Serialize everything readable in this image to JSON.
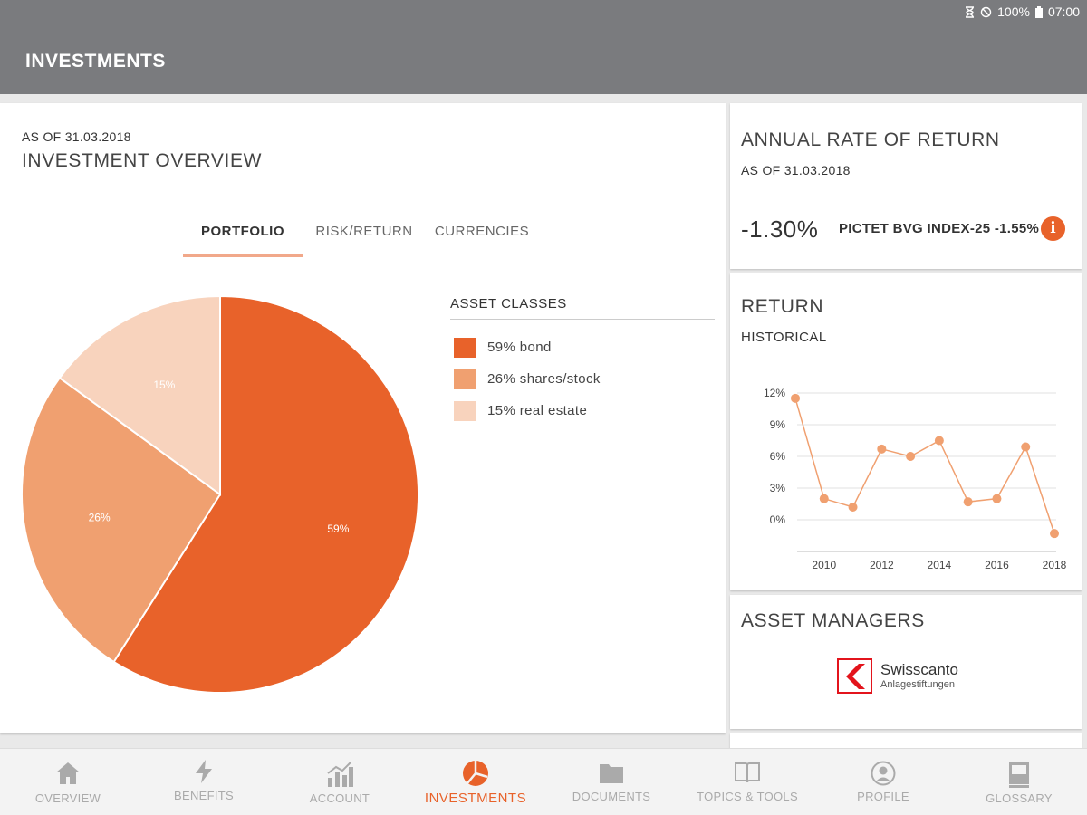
{
  "status_bar": {
    "battery": "100%",
    "time": "07:00"
  },
  "app_bar": {
    "title": "INVESTMENTS"
  },
  "overview": {
    "as_of": "AS OF 31.03.2018",
    "title": "INVESTMENT OVERVIEW",
    "tabs": [
      {
        "label": "PORTFOLIO",
        "active": true
      },
      {
        "label": "RISK/RETURN",
        "active": false
      },
      {
        "label": "CURRENCIES",
        "active": false
      }
    ],
    "legend_title": "ASSET CLASSES",
    "legend": [
      {
        "label": "59% bond",
        "color": "#e8622a"
      },
      {
        "label": "26% shares/stock",
        "color": "#f0a070"
      },
      {
        "label": "15% real estate",
        "color": "#f8d3bd"
      }
    ]
  },
  "annual": {
    "title": "ANNUAL RATE OF RETURN",
    "as_of": "AS OF 31.03.2018",
    "value": "-1.30%",
    "benchmark": "PICTET BVG INDEX-25 -1.55%",
    "info_icon": "i"
  },
  "return_card": {
    "title": "RETURN",
    "subtitle": "HISTORICAL"
  },
  "managers": {
    "title": "ASSET MANAGERS",
    "logo_name": "Swisscanto",
    "logo_sub": "Anlagestiftungen"
  },
  "chart_data": [
    {
      "type": "pie",
      "labels": [
        "bond",
        "shares/stock",
        "real estate"
      ],
      "values": [
        59,
        26,
        15
      ],
      "data_labels": [
        "59%",
        "26%",
        "15%"
      ],
      "colors": [
        "#e8622a",
        "#f0a070",
        "#f8d3bd"
      ]
    },
    {
      "type": "line",
      "x": [
        2009,
        2010,
        2011,
        2012,
        2013,
        2014,
        2015,
        2016,
        2017,
        2018
      ],
      "values": [
        11.5,
        2.0,
        1.2,
        6.7,
        6.0,
        7.5,
        1.7,
        2.0,
        6.9,
        -1.3
      ],
      "x_ticks": [
        "2010",
        "2012",
        "2014",
        "2016",
        "2018"
      ],
      "y_ticks": [
        "12%",
        "9%",
        "6%",
        "3%",
        "0%"
      ],
      "ylim": [
        -3,
        12
      ],
      "grid": true,
      "color": "#f0a070"
    }
  ],
  "bottom_nav": [
    {
      "label": "OVERVIEW",
      "icon": "home-icon",
      "active": false
    },
    {
      "label": "BENEFITS",
      "icon": "lightning-icon",
      "active": false
    },
    {
      "label": "ACCOUNT",
      "icon": "bar-chart-icon",
      "active": false
    },
    {
      "label": "INVESTMENTS",
      "icon": "pie-chart-icon",
      "active": true
    },
    {
      "label": "DOCUMENTS",
      "icon": "folder-icon",
      "active": false
    },
    {
      "label": "TOPICS & TOOLS",
      "icon": "book-icon",
      "active": false
    },
    {
      "label": "PROFILE",
      "icon": "person-icon",
      "active": false
    },
    {
      "label": "GLOSSARY",
      "icon": "glossary-icon",
      "active": false
    }
  ]
}
